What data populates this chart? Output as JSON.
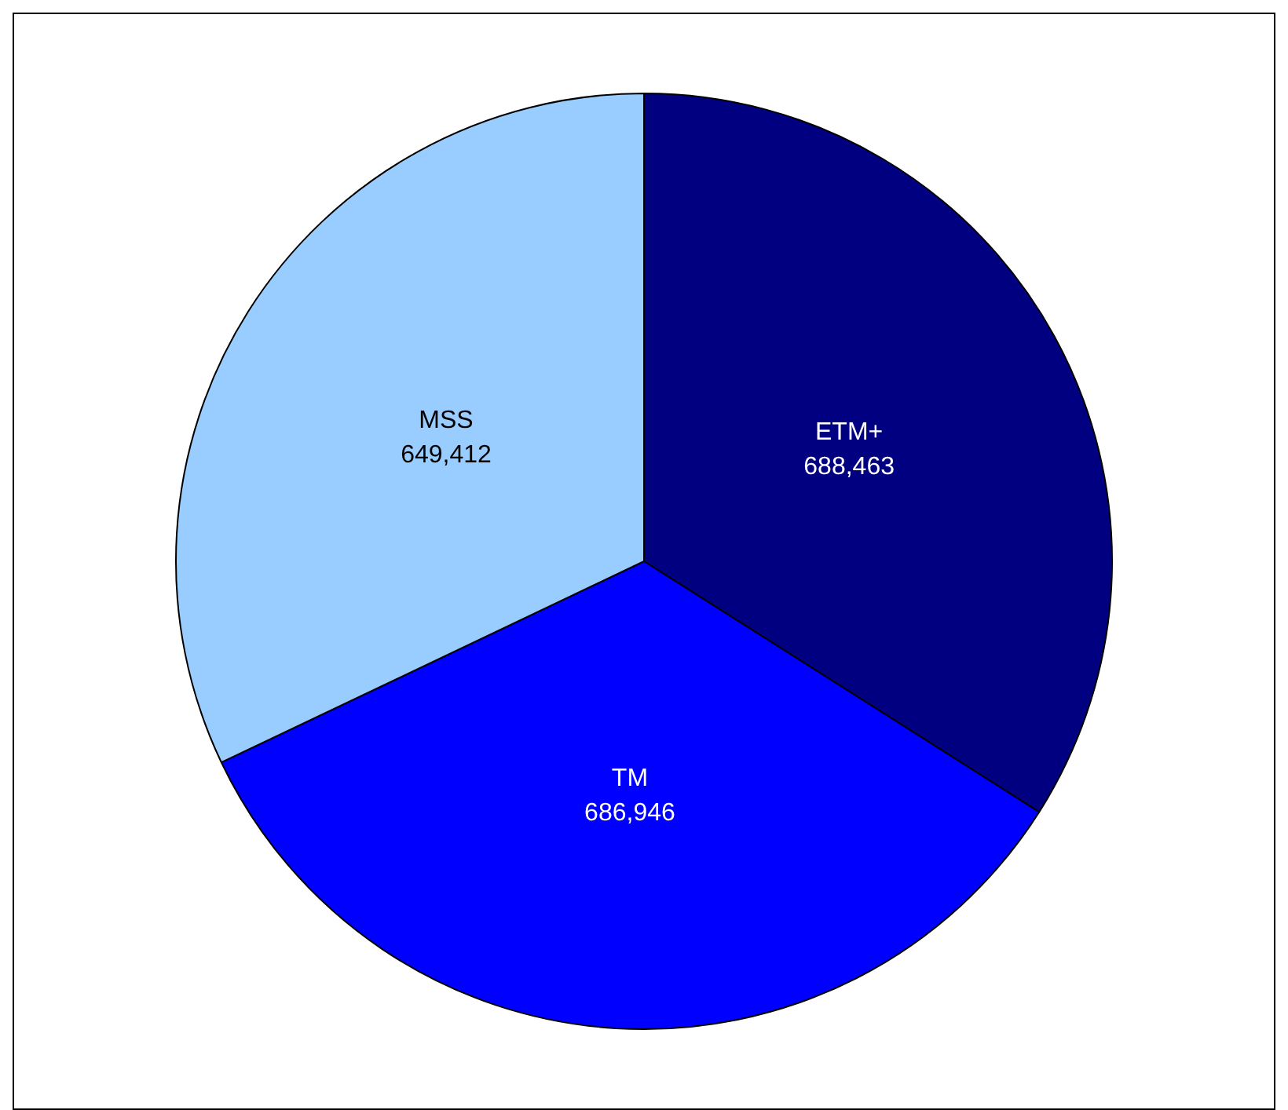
{
  "chart_data": {
    "type": "pie",
    "categories": [
      "ETM+",
      "TM",
      "MSS"
    ],
    "values": [
      688463,
      686946,
      649412
    ],
    "value_labels": [
      "688,463",
      "686,946",
      "649,412"
    ],
    "colors": [
      "#000080",
      "#0000ff",
      "#99ccff"
    ],
    "legend": false
  }
}
